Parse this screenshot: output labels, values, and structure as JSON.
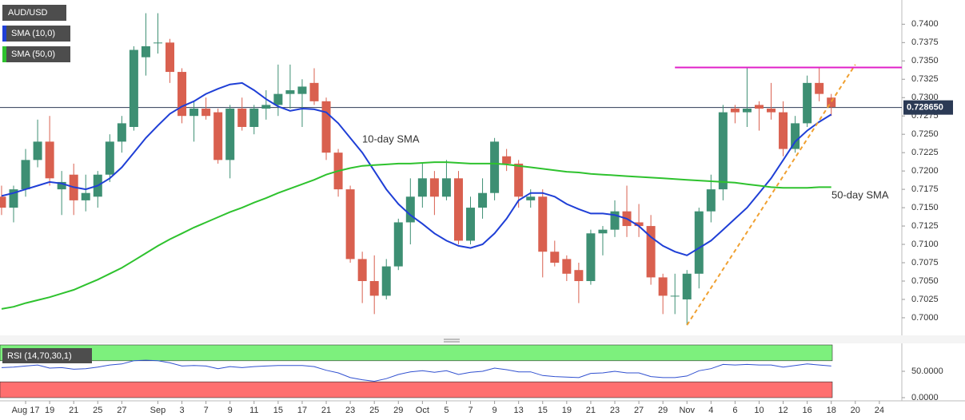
{
  "chart_data": {
    "type": "candlestick",
    "title": "AUD/USD",
    "xlim": [
      -0.13,
      74.87
    ],
    "xticks": [
      {
        "value": 2,
        "label": "Aug 17"
      },
      {
        "value": 4,
        "label": "19"
      },
      {
        "value": 6,
        "label": "21"
      },
      {
        "value": 8,
        "label": "25"
      },
      {
        "value": 10,
        "label": "27"
      },
      {
        "value": 13,
        "label": "Sep"
      },
      {
        "value": 15,
        "label": "3"
      },
      {
        "value": 17,
        "label": "7"
      },
      {
        "value": 19,
        "label": "9"
      },
      {
        "value": 21,
        "label": "11"
      },
      {
        "value": 23,
        "label": "15"
      },
      {
        "value": 25,
        "label": "17"
      },
      {
        "value": 27,
        "label": "21"
      },
      {
        "value": 29,
        "label": "23"
      },
      {
        "value": 31,
        "label": "25"
      },
      {
        "value": 33,
        "label": "29"
      },
      {
        "value": 35,
        "label": "Oct"
      },
      {
        "value": 37,
        "label": "5"
      },
      {
        "value": 39,
        "label": "7"
      },
      {
        "value": 41,
        "label": "9"
      },
      {
        "value": 43,
        "label": "13"
      },
      {
        "value": 45,
        "label": "15"
      },
      {
        "value": 47,
        "label": "19"
      },
      {
        "value": 49,
        "label": "21"
      },
      {
        "value": 51,
        "label": "23"
      },
      {
        "value": 53,
        "label": "27"
      },
      {
        "value": 55,
        "label": "29"
      },
      {
        "value": 57,
        "label": "Nov"
      },
      {
        "value": 59,
        "label": "4"
      },
      {
        "value": 61,
        "label": "6"
      },
      {
        "value": 63,
        "label": "10"
      },
      {
        "value": 65,
        "label": "12"
      },
      {
        "value": 67,
        "label": "16"
      },
      {
        "value": 69,
        "label": "18"
      },
      {
        "value": 71,
        "label": "20"
      },
      {
        "value": 73,
        "label": "24"
      }
    ],
    "ylim": [
      0.6976,
      0.7433
    ],
    "yticks": [
      {
        "value": 0.7,
        "label": "0.7000"
      },
      {
        "value": 0.7025,
        "label": "0.7025"
      },
      {
        "value": 0.705,
        "label": "0.7050"
      },
      {
        "value": 0.7075,
        "label": "0.7075"
      },
      {
        "value": 0.71,
        "label": "0.7100"
      },
      {
        "value": 0.7125,
        "label": "0.7125"
      },
      {
        "value": 0.715,
        "label": "0.7150"
      },
      {
        "value": 0.7175,
        "label": "0.7175"
      },
      {
        "value": 0.72,
        "label": "0.7200"
      },
      {
        "value": 0.7225,
        "label": "0.7225"
      },
      {
        "value": 0.725,
        "label": "0.7250"
      },
      {
        "value": 0.7275,
        "label": "0.7275"
      },
      {
        "value": 0.73,
        "label": "0.7300"
      },
      {
        "value": 0.7325,
        "label": "0.7325"
      },
      {
        "value": 0.735,
        "label": "0.7350"
      },
      {
        "value": 0.7375,
        "label": "0.7375"
      },
      {
        "value": 0.74,
        "label": "0.7400"
      }
    ],
    "candles": {
      "up_color": "#3d8f73",
      "down_color": "#d9604f",
      "open": [
        0.7165,
        0.715,
        0.7175,
        0.7215,
        0.724,
        0.7175,
        0.7195,
        0.716,
        0.7165,
        0.7195,
        0.724,
        0.726,
        0.7355,
        0.7375,
        0.7375,
        0.7335,
        0.7275,
        0.7285,
        0.728,
        0.7215,
        0.7285,
        0.726,
        0.7285,
        0.729,
        0.7305,
        0.7305,
        0.732,
        0.7295,
        0.7225,
        0.7175,
        0.708,
        0.705,
        0.703,
        0.707,
        0.713,
        0.7165,
        0.719,
        0.7165,
        0.719,
        0.7105,
        0.715,
        0.717,
        0.722,
        0.721,
        0.716,
        0.7165,
        0.709,
        0.708,
        0.7065,
        0.705,
        0.7115,
        0.712,
        0.7145,
        0.713,
        0.7125,
        0.7055,
        0.703,
        0.7025,
        0.706,
        0.7145,
        0.7175,
        0.7285,
        0.728,
        0.729,
        0.7285,
        0.728,
        0.723,
        0.7265,
        0.732,
        0.73
      ],
      "high": [
        0.718,
        0.718,
        0.723,
        0.727,
        0.7275,
        0.72,
        0.721,
        0.7195,
        0.72,
        0.725,
        0.7275,
        0.737,
        0.7415,
        0.7415,
        0.738,
        0.734,
        0.7295,
        0.73,
        0.7285,
        0.729,
        0.73,
        0.729,
        0.731,
        0.7345,
        0.7345,
        0.7325,
        0.734,
        0.73,
        0.723,
        0.718,
        0.709,
        0.7085,
        0.708,
        0.7135,
        0.719,
        0.721,
        0.72,
        0.7215,
        0.72,
        0.7165,
        0.719,
        0.7245,
        0.723,
        0.7215,
        0.7175,
        0.7175,
        0.7105,
        0.7085,
        0.7075,
        0.712,
        0.7125,
        0.716,
        0.718,
        0.7155,
        0.714,
        0.706,
        0.706,
        0.7065,
        0.715,
        0.7195,
        0.729,
        0.729,
        0.734,
        0.7295,
        0.732,
        0.7295,
        0.7275,
        0.733,
        0.734,
        0.7305
      ],
      "low": [
        0.714,
        0.713,
        0.7165,
        0.7205,
        0.718,
        0.714,
        0.714,
        0.7145,
        0.715,
        0.7185,
        0.7225,
        0.7255,
        0.733,
        0.736,
        0.732,
        0.7265,
        0.724,
        0.727,
        0.721,
        0.719,
        0.7255,
        0.725,
        0.727,
        0.7275,
        0.7285,
        0.726,
        0.729,
        0.7215,
        0.7165,
        0.7075,
        0.702,
        0.7005,
        0.7025,
        0.7065,
        0.71,
        0.715,
        0.714,
        0.716,
        0.71,
        0.71,
        0.7135,
        0.716,
        0.72,
        0.715,
        0.715,
        0.7055,
        0.707,
        0.705,
        0.702,
        0.7045,
        0.7085,
        0.711,
        0.711,
        0.711,
        0.7045,
        0.7005,
        0.7005,
        0.699,
        0.704,
        0.713,
        0.716,
        0.7265,
        0.726,
        0.7255,
        0.727,
        0.722,
        0.7225,
        0.726,
        0.7295,
        0.7275
      ],
      "close": [
        0.715,
        0.7175,
        0.7215,
        0.724,
        0.719,
        0.7185,
        0.716,
        0.717,
        0.7195,
        0.724,
        0.7265,
        0.7365,
        0.737,
        0.7375,
        0.7335,
        0.7275,
        0.7285,
        0.7275,
        0.7215,
        0.7285,
        0.726,
        0.7285,
        0.729,
        0.7305,
        0.731,
        0.7315,
        0.7295,
        0.7225,
        0.7175,
        0.708,
        0.705,
        0.703,
        0.707,
        0.713,
        0.7165,
        0.719,
        0.7165,
        0.719,
        0.7105,
        0.715,
        0.717,
        0.724,
        0.721,
        0.7165,
        0.7165,
        0.709,
        0.7075,
        0.706,
        0.705,
        0.7115,
        0.712,
        0.7145,
        0.7125,
        0.7125,
        0.7055,
        0.703,
        0.703,
        0.706,
        0.7145,
        0.7175,
        0.728,
        0.728,
        0.7285,
        0.7285,
        0.728,
        0.723,
        0.7265,
        0.732,
        0.7305,
        0.7287
      ]
    },
    "series": [
      {
        "name": "SMA (10,0)",
        "color": "#1f3fd6",
        "values": [
          0.7166,
          0.717,
          0.7175,
          0.718,
          0.7185,
          0.7183,
          0.7178,
          0.7175,
          0.718,
          0.719,
          0.7205,
          0.7225,
          0.7245,
          0.7262,
          0.7278,
          0.7288,
          0.7295,
          0.7305,
          0.7312,
          0.7318,
          0.732,
          0.731,
          0.7298,
          0.7288,
          0.7282,
          0.7285,
          0.7284,
          0.728,
          0.7265,
          0.7245,
          0.7225,
          0.72,
          0.7175,
          0.7155,
          0.714,
          0.7128,
          0.7115,
          0.7105,
          0.7098,
          0.7095,
          0.71,
          0.7115,
          0.7135,
          0.716,
          0.717,
          0.717,
          0.7165,
          0.7155,
          0.7148,
          0.7142,
          0.7142,
          0.714,
          0.7135,
          0.7125,
          0.711,
          0.7098,
          0.709,
          0.7085,
          0.7095,
          0.7105,
          0.712,
          0.7135,
          0.715,
          0.717,
          0.719,
          0.7215,
          0.724,
          0.7255,
          0.7267,
          0.7277
        ]
      },
      {
        "name": "SMA (50,0)",
        "color": "#2ec22e",
        "values": [
          0.7012,
          0.7015,
          0.702,
          0.7024,
          0.7028,
          0.7033,
          0.7038,
          0.7045,
          0.7052,
          0.706,
          0.7068,
          0.7078,
          0.7088,
          0.7098,
          0.7107,
          0.7115,
          0.7123,
          0.713,
          0.7137,
          0.7144,
          0.715,
          0.7157,
          0.7163,
          0.717,
          0.7176,
          0.7182,
          0.7188,
          0.7195,
          0.72,
          0.7204,
          0.7207,
          0.7208,
          0.7209,
          0.721,
          0.721,
          0.7211,
          0.7212,
          0.7212,
          0.7211,
          0.721,
          0.721,
          0.721,
          0.7209,
          0.7207,
          0.7205,
          0.7203,
          0.7201,
          0.7199,
          0.7198,
          0.7196,
          0.7195,
          0.7194,
          0.7193,
          0.7192,
          0.7191,
          0.719,
          0.7189,
          0.7188,
          0.7187,
          0.7186,
          0.7185,
          0.7184,
          0.7182,
          0.718,
          0.7178,
          0.7177,
          0.7177,
          0.7177,
          0.7178,
          0.7178
        ]
      }
    ],
    "annotations": [
      {
        "text": "10-day SMA",
        "color": "#3c4fd0"
      },
      {
        "text": "50-day SMA",
        "color": "#2ea82e"
      }
    ],
    "trendline": {
      "start": [
        57,
        0.699
      ],
      "end": [
        71,
        0.7345
      ],
      "color": "#f0a030"
    },
    "resistance": {
      "start": 56,
      "value": 0.7341,
      "color": "#e020c8"
    },
    "last_price": {
      "value": 0.72865,
      "label": "0.728650"
    },
    "rsi": {
      "name": "RSI (14,70,30,1)",
      "color": "#3050d0",
      "ylim": [
        0,
        100
      ],
      "overbought": 70,
      "oversold": 30,
      "yticks": [
        {
          "value": 50,
          "label": "50.0000"
        },
        {
          "value": 0,
          "label": "0.0000"
        }
      ],
      "values": [
        57,
        58,
        60,
        62,
        56,
        57,
        54,
        55,
        58,
        62,
        64,
        70,
        71,
        70,
        66,
        60,
        61,
        60,
        55,
        59,
        57,
        59,
        60,
        61,
        61,
        61,
        59,
        52,
        47,
        38,
        34,
        31,
        36,
        44,
        49,
        51,
        48,
        51,
        44,
        48,
        50,
        56,
        53,
        49,
        49,
        42,
        40,
        39,
        38,
        46,
        47,
        50,
        47,
        47,
        40,
        38,
        38,
        41,
        51,
        55,
        63,
        62,
        63,
        62,
        62,
        58,
        61,
        64,
        62,
        60
      ]
    }
  }
}
